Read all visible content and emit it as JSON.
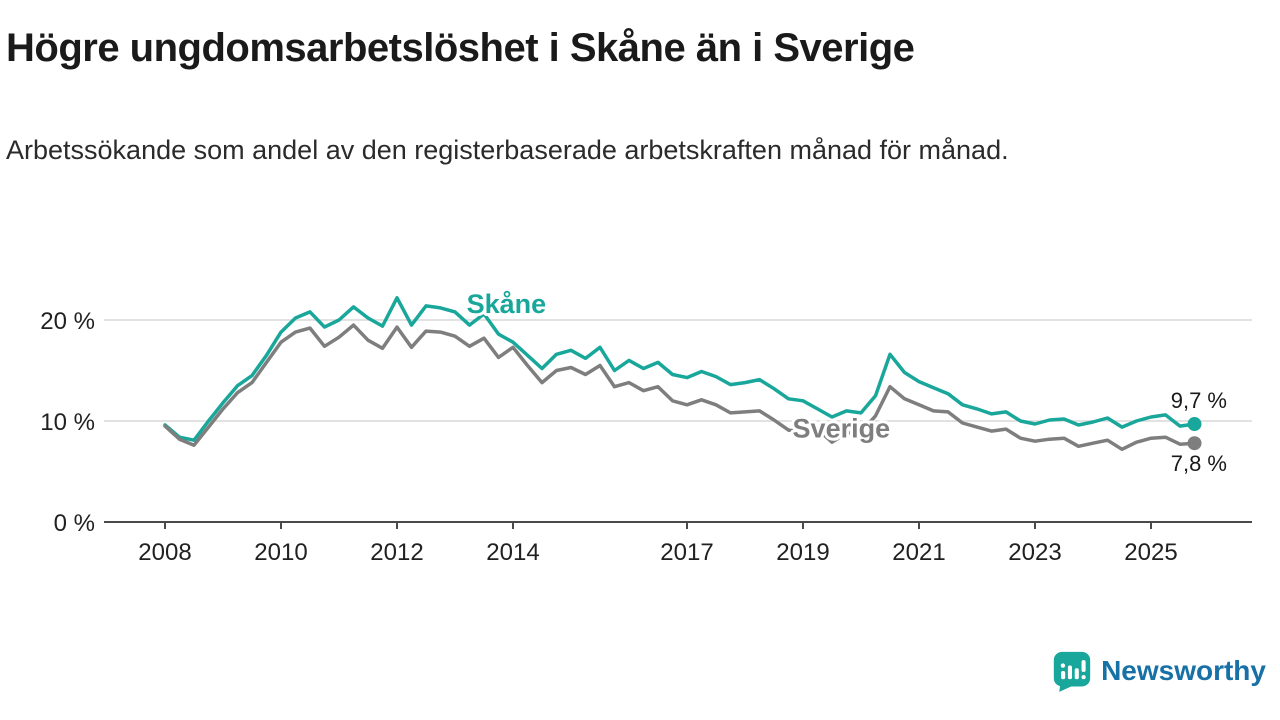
{
  "page": {
    "title": "Högre ungdomsarbetslöshet i Skåne än i Sverige",
    "subtitle": "Arbetssökande som andel av den registerbaserade arbetskraften månad för månad."
  },
  "branding": {
    "name": "Newsworthy",
    "icon_color": "#18a79a",
    "text_color": "#1770a6"
  },
  "chart_data": {
    "type": "line",
    "title": "Högre ungdomsarbetslöshet i Skåne än i Sverige",
    "subtitle": "Arbetssökande som andel av den registerbaserade arbetskraften månad för månad.",
    "unit": "%",
    "grid": true,
    "legend": "inline-labels",
    "x_axis": {
      "origin": 2008,
      "ticks": [
        2008,
        2010,
        2012,
        2014,
        2017,
        2019,
        2021,
        2023,
        2025
      ],
      "range": [
        2008,
        2026.3
      ]
    },
    "y_axis": {
      "ticks": [
        0,
        10,
        20
      ],
      "tick_labels": [
        "0 %",
        "10 %",
        "20 %"
      ],
      "range": [
        0,
        23
      ]
    },
    "x": [
      2008,
      2008.25,
      2008.5,
      2008.75,
      2009,
      2009.25,
      2009.5,
      2009.75,
      2010,
      2010.25,
      2010.5,
      2010.75,
      2011,
      2011.25,
      2011.5,
      2011.75,
      2012,
      2012.25,
      2012.5,
      2012.75,
      2013,
      2013.25,
      2013.5,
      2013.75,
      2014,
      2014.25,
      2014.5,
      2014.75,
      2015,
      2015.25,
      2015.5,
      2015.75,
      2016,
      2016.25,
      2016.5,
      2016.75,
      2017,
      2017.25,
      2017.5,
      2017.75,
      2018,
      2018.25,
      2018.5,
      2018.75,
      2019,
      2019.25,
      2019.5,
      2019.75,
      2020,
      2020.25,
      2020.5,
      2020.75,
      2021,
      2021.25,
      2021.5,
      2021.75,
      2022,
      2022.25,
      2022.5,
      2022.75,
      2023,
      2023.25,
      2023.5,
      2023.75,
      2024,
      2024.25,
      2024.5,
      2024.75,
      2025,
      2025.25,
      2025.5,
      2025.75
    ],
    "series": [
      {
        "name": "Skåne",
        "color": "#18a79a",
        "end_value": 9.7,
        "end_label": "9,7 %",
        "end_label_position": "above",
        "label_anchor": {
          "x": 2013.2,
          "y": 20.7
        },
        "values": [
          9.6,
          8.4,
          8.1,
          10.0,
          11.8,
          13.5,
          14.5,
          16.5,
          18.8,
          20.2,
          20.8,
          19.3,
          20.0,
          21.3,
          20.2,
          19.4,
          22.2,
          19.5,
          21.4,
          21.2,
          20.8,
          19.5,
          20.6,
          18.6,
          17.8,
          16.5,
          15.2,
          16.6,
          17.0,
          16.2,
          17.3,
          15.0,
          16.0,
          15.2,
          15.8,
          14.6,
          14.3,
          14.9,
          14.4,
          13.6,
          13.8,
          14.1,
          13.2,
          12.2,
          12.0,
          11.2,
          10.4,
          11.0,
          10.8,
          12.5,
          16.6,
          14.8,
          13.9,
          13.3,
          12.7,
          11.6,
          11.2,
          10.7,
          10.9,
          10.0,
          9.7,
          10.1,
          10.2,
          9.6,
          9.9,
          10.3,
          9.4,
          10.0,
          10.4,
          10.6,
          9.5,
          9.7
        ]
      },
      {
        "name": "Sverige",
        "color": "#7e7e7e",
        "end_value": 7.8,
        "end_label": "7,8 %",
        "end_label_position": "below",
        "label_anchor": {
          "x": 2018.82,
          "y": 8.35
        },
        "values": [
          9.5,
          8.2,
          7.6,
          9.4,
          11.2,
          12.8,
          13.8,
          15.8,
          17.8,
          18.8,
          19.2,
          17.4,
          18.3,
          19.5,
          18.0,
          17.2,
          19.3,
          17.3,
          18.9,
          18.8,
          18.4,
          17.4,
          18.2,
          16.3,
          17.3,
          15.5,
          13.8,
          15.0,
          15.3,
          14.6,
          15.5,
          13.4,
          13.8,
          13.0,
          13.4,
          12.0,
          11.6,
          12.1,
          11.6,
          10.8,
          10.9,
          11.0,
          10.1,
          9.1,
          8.9,
          9.2,
          7.9,
          8.8,
          8.9,
          10.5,
          13.4,
          12.2,
          11.6,
          11.0,
          10.9,
          9.8,
          9.4,
          9.0,
          9.2,
          8.3,
          8.0,
          8.2,
          8.3,
          7.5,
          7.8,
          8.1,
          7.2,
          7.9,
          8.3,
          8.4,
          7.7,
          7.8
        ]
      }
    ]
  }
}
